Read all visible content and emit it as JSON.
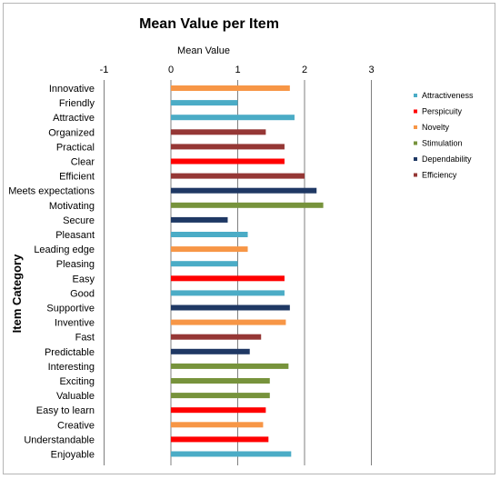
{
  "chart_data": {
    "type": "bar",
    "orientation": "horizontal",
    "title": "Mean Value per Item",
    "xlabel": "Mean Value",
    "ylabel": "Item Category",
    "xlim": [
      -1,
      3
    ],
    "xticks": [
      -1,
      0,
      1,
      2,
      3
    ],
    "grid": true,
    "legend_position": "right",
    "scales": [
      {
        "name": "Attractiveness",
        "color": "#4bacc6"
      },
      {
        "name": "Perspicuity",
        "color": "#ff0000"
      },
      {
        "name": "Novelty",
        "color": "#f79646"
      },
      {
        "name": "Stimulation",
        "color": "#77933c"
      },
      {
        "name": "Dependability",
        "color": "#1f3864"
      },
      {
        "name": "Efficiency",
        "color": "#953735"
      }
    ],
    "items": [
      {
        "label": "Innovative",
        "scale": "Novelty",
        "value": 1.78
      },
      {
        "label": "Friendly",
        "scale": "Attractiveness",
        "value": 1.0
      },
      {
        "label": "Attractive",
        "scale": "Attractiveness",
        "value": 1.85
      },
      {
        "label": "Organized",
        "scale": "Efficiency",
        "value": 1.42
      },
      {
        "label": "Practical",
        "scale": "Efficiency",
        "value": 1.7
      },
      {
        "label": "Clear",
        "scale": "Perspicuity",
        "value": 1.7
      },
      {
        "label": "Efficient",
        "scale": "Efficiency",
        "value": 2.0
      },
      {
        "label": "Meets expectations",
        "scale": "Dependability",
        "value": 2.18
      },
      {
        "label": "Motivating",
        "scale": "Stimulation",
        "value": 2.28
      },
      {
        "label": "Secure",
        "scale": "Dependability",
        "value": 0.85
      },
      {
        "label": "Pleasant",
        "scale": "Attractiveness",
        "value": 1.15
      },
      {
        "label": "Leading edge",
        "scale": "Novelty",
        "value": 1.15
      },
      {
        "label": "Pleasing",
        "scale": "Attractiveness",
        "value": 1.0
      },
      {
        "label": "Easy",
        "scale": "Perspicuity",
        "value": 1.7
      },
      {
        "label": "Good",
        "scale": "Attractiveness",
        "value": 1.7
      },
      {
        "label": "Supportive",
        "scale": "Dependability",
        "value": 1.78
      },
      {
        "label": "Inventive",
        "scale": "Novelty",
        "value": 1.72
      },
      {
        "label": "Fast",
        "scale": "Efficiency",
        "value": 1.35
      },
      {
        "label": "Predictable",
        "scale": "Dependability",
        "value": 1.18
      },
      {
        "label": "Interesting",
        "scale": "Stimulation",
        "value": 1.76
      },
      {
        "label": "Exciting",
        "scale": "Stimulation",
        "value": 1.48
      },
      {
        "label": "Valuable",
        "scale": "Stimulation",
        "value": 1.48
      },
      {
        "label": "Easy to learn",
        "scale": "Perspicuity",
        "value": 1.42
      },
      {
        "label": "Creative",
        "scale": "Novelty",
        "value": 1.38
      },
      {
        "label": "Understandable",
        "scale": "Perspicuity",
        "value": 1.46
      },
      {
        "label": "Enjoyable",
        "scale": "Attractiveness",
        "value": 1.8
      }
    ]
  }
}
